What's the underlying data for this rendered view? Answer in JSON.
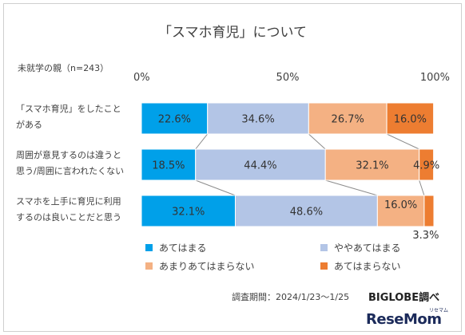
{
  "chart_data": {
    "type": "bar",
    "orientation": "horizontal",
    "stacked": "percent",
    "title": "「スマホ育児」について",
    "subtitle": "未就学の親（n=243）",
    "x_ticks": [
      "0%",
      "50%",
      "100%"
    ],
    "xlim": [
      0,
      100
    ],
    "categories": [
      [
        "「スマホ育児」をしたこと",
        "がある"
      ],
      [
        "周囲が意見するのは違うと",
        "思う/周囲に言われたくない"
      ],
      [
        "スマホを上手に育児に利用",
        "するのは良いことだと思う"
      ]
    ],
    "series": [
      {
        "name": "あてはまる",
        "color": "#00a0e9",
        "values": [
          22.6,
          18.5,
          32.1
        ],
        "labels": [
          "22.6%",
          "18.5%",
          "32.1%"
        ]
      },
      {
        "name": "ややあてはまる",
        "color": "#b3c5e6",
        "values": [
          34.6,
          44.4,
          48.6
        ],
        "labels": [
          "34.6%",
          "44.4%",
          "48.6%"
        ]
      },
      {
        "name": "あまりあてはまらない",
        "color": "#f4b183",
        "values": [
          26.7,
          32.1,
          16.0
        ],
        "labels": [
          "26.7%",
          "32.1%",
          "16.0%"
        ]
      },
      {
        "name": "あてはまらない",
        "color": "#ed7d31",
        "values": [
          16.0,
          4.9,
          3.3
        ],
        "labels": [
          "16.0%",
          "4.9%",
          "3.3%"
        ]
      }
    ],
    "connector_lines": true,
    "legend_position": "bottom"
  },
  "source": {
    "text": "調査期間：2024/1/23〜1/25",
    "brand": "BIGLOBE調べ"
  },
  "watermark": {
    "text": "ReseMom",
    "kana": "リセマム"
  }
}
